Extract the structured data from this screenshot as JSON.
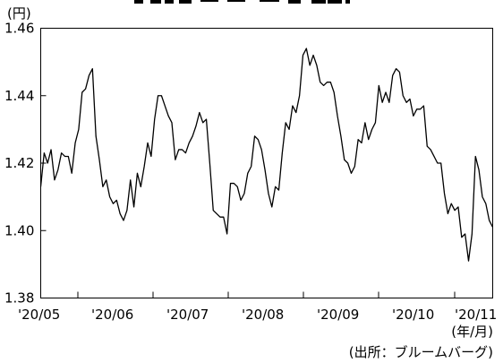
{
  "chart_data": {
    "type": "line",
    "title": "",
    "unit_label": "(円)",
    "xlabel": "(年/月)",
    "ylabel": "",
    "source_note": "(出所：ブルームバーグ)",
    "ylim": [
      1.38,
      1.46
    ],
    "y_ticks": [
      "1.38",
      "1.40",
      "1.42",
      "1.44",
      "1.46"
    ],
    "x_tick_labels": [
      "'20/05",
      "'20/06",
      "'20/07",
      "'20/08",
      "'20/09",
      "'20/10",
      "'20/11"
    ],
    "grid": false,
    "series": [
      {
        "values": [
          1.413,
          1.423,
          1.42,
          1.424,
          1.415,
          1.418,
          1.423,
          1.422,
          1.422,
          1.417,
          1.426,
          1.43,
          1.441,
          1.442,
          1.446,
          1.448,
          1.428,
          1.421,
          1.413,
          1.415,
          1.41,
          1.408,
          1.409,
          1.405,
          1.403,
          1.406,
          1.415,
          1.407,
          1.417,
          1.413,
          1.419,
          1.426,
          1.422,
          1.433,
          1.44,
          1.44,
          1.437,
          1.434,
          1.432,
          1.421,
          1.424,
          1.424,
          1.423,
          1.426,
          1.428,
          1.431,
          1.435,
          1.432,
          1.433,
          1.42,
          1.406,
          1.405,
          1.404,
          1.404,
          1.399,
          1.414,
          1.414,
          1.413,
          1.409,
          1.411,
          1.417,
          1.419,
          1.428,
          1.427,
          1.424,
          1.418,
          1.411,
          1.407,
          1.413,
          1.412,
          1.423,
          1.432,
          1.43,
          1.437,
          1.435,
          1.44,
          1.452,
          1.454,
          1.449,
          1.452,
          1.449,
          1.444,
          1.443,
          1.444,
          1.444,
          1.441,
          1.434,
          1.428,
          1.421,
          1.42,
          1.417,
          1.419,
          1.427,
          1.426,
          1.432,
          1.427,
          1.43,
          1.432,
          1.443,
          1.438,
          1.441,
          1.438,
          1.446,
          1.448,
          1.447,
          1.44,
          1.438,
          1.439,
          1.434,
          1.436,
          1.436,
          1.437,
          1.425,
          1.424,
          1.422,
          1.42,
          1.42,
          1.411,
          1.405,
          1.408,
          1.406,
          1.407,
          1.398,
          1.399,
          1.391,
          1.399,
          1.422,
          1.418,
          1.41,
          1.408,
          1.403,
          1.401
        ]
      }
    ]
  }
}
